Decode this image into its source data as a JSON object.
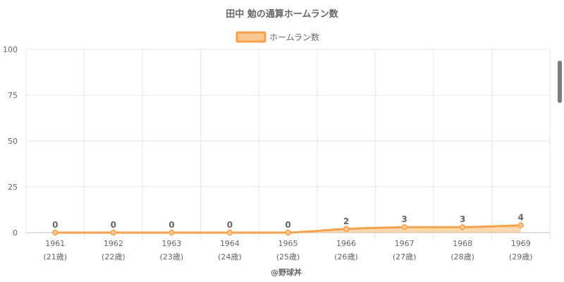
{
  "chart_data": {
    "type": "area",
    "title": "田中 勉の通算ホームラン数",
    "categories": [
      "1961",
      "1962",
      "1963",
      "1964",
      "1965",
      "1966",
      "1967",
      "1968",
      "1969"
    ],
    "category_sublabels": [
      "(21歳)",
      "(22歳)",
      "(23歳)",
      "(24歳)",
      "(25歳)",
      "(26歳)",
      "(27歳)",
      "(28歳)",
      "(29歳)"
    ],
    "series": [
      {
        "name": "ホームラン数",
        "values": [
          0,
          0,
          0,
          0,
          0,
          2,
          3,
          3,
          4
        ],
        "color": "#f7a24a",
        "fill": "rgba(250, 190, 125, 0.6)"
      }
    ],
    "ylim": [
      0,
      100
    ],
    "yticks": [
      0,
      25,
      50,
      75,
      100
    ],
    "grid": true,
    "legend": "top-center"
  },
  "credit": "@野球丼",
  "colors": {
    "grid": "#e6e6e6",
    "axis": "#bdbdbd",
    "text": "#666666"
  }
}
